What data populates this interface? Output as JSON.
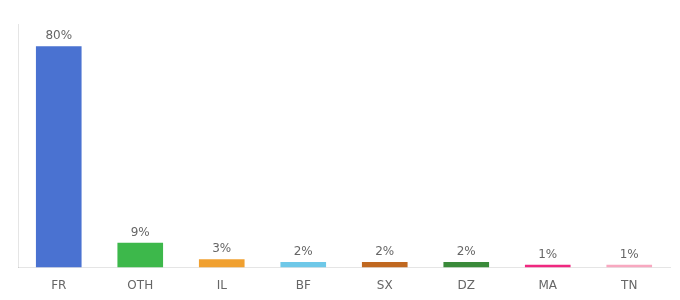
{
  "chart_data": {
    "type": "bar",
    "categories": [
      "FR",
      "OTH",
      "IL",
      "BF",
      "SX",
      "DZ",
      "MA",
      "TN"
    ],
    "values": [
      80,
      9,
      3,
      2,
      2,
      2,
      1,
      1
    ],
    "value_labels": [
      "80%",
      "9%",
      "3%",
      "2%",
      "2%",
      "2%",
      "1%",
      "1%"
    ],
    "colors": [
      "#4a72d1",
      "#3db84b",
      "#f0a030",
      "#6ec8e8",
      "#c06820",
      "#3a8a3a",
      "#f02880",
      "#f8a8c0"
    ],
    "ylim": [
      0,
      88
    ],
    "data_labels": true,
    "tick_labels": "x",
    "grid": false
  }
}
